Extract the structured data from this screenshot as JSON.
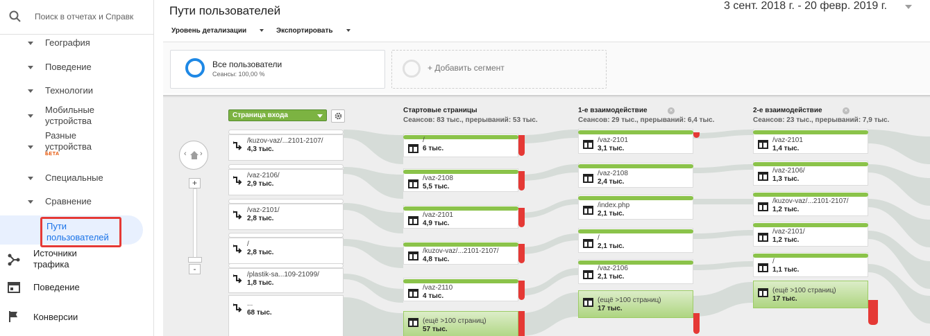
{
  "search": {
    "placeholder": "Поиск в отчетах и Справк"
  },
  "sidebar": {
    "sub_items": [
      {
        "label": "География"
      },
      {
        "label": "Поведение"
      },
      {
        "label": "Технологии"
      },
      {
        "label": "Мобильные устройства"
      },
      {
        "label": "Разные устройства",
        "badge": "БЕТА"
      },
      {
        "label": "Специальные"
      },
      {
        "label": "Сравнение"
      }
    ],
    "active_item": "Пути пользователей",
    "main_items": [
      {
        "label": "Источники трафика",
        "icon": "acquisition-icon"
      },
      {
        "label": "Поведение",
        "icon": "behavior-icon"
      },
      {
        "label": "Конверсии",
        "icon": "flag-icon"
      }
    ]
  },
  "header": {
    "title": "Пути пользователей",
    "date_range": "3 сент. 2018 г. - 20 февр. 2019 г."
  },
  "toolbar": {
    "detail_level": "Уровень детализации",
    "export": "Экспортировать"
  },
  "segments": {
    "active": {
      "name": "Все пользователи",
      "sessions": "Сеансы: 100,00 %"
    },
    "add": "+ Добавить сегмент"
  },
  "flow": {
    "dimension": "Страница входа",
    "zoom_plus": "+",
    "zoom_minus": "-",
    "entries": [
      {
        "label": "/kuzov-vaz/...2101-2107/",
        "count": "4,3 тыс."
      },
      {
        "label": "/vaz-2106/",
        "count": "2,9 тыс."
      },
      {
        "label": "/vaz-2101/",
        "count": "2,8 тыс."
      },
      {
        "label": "/",
        "count": "2,8 тыс."
      },
      {
        "label": "/plastik-sa...109-21099/",
        "count": "1,8 тыс."
      },
      {
        "label": "...",
        "count": "68 тыс."
      }
    ],
    "columns": [
      {
        "title": "Стартовые страницы",
        "stats": "Сеансов: 83 тыс., прерываний: 53 тыс.",
        "closable": false,
        "nodes": [
          {
            "label": "/",
            "count": "6 тыс."
          },
          {
            "label": "/vaz-2108",
            "count": "5,5 тыс."
          },
          {
            "label": "/vaz-2101",
            "count": "4,9 тыс."
          },
          {
            "label": "/kuzov-vaz/...2101-2107/",
            "count": "4,8 тыс."
          },
          {
            "label": "/vaz-2110",
            "count": "4 тыс."
          },
          {
            "label": "(ещё >100 страниц)",
            "count": "57 тыс."
          }
        ]
      },
      {
        "title": "1-е взаимодействие",
        "stats": "Сеансов: 29 тыс., прерываний: 6,4 тыс.",
        "closable": true,
        "nodes": [
          {
            "label": "/vaz-2101",
            "count": "3,1 тыс."
          },
          {
            "label": "/vaz-2108",
            "count": "2,4 тыс."
          },
          {
            "label": "/index.php",
            "count": "2,1 тыс."
          },
          {
            "label": "/",
            "count": "2,1 тыс."
          },
          {
            "label": "/vaz-2106",
            "count": "2,1 тыс."
          },
          {
            "label": "(ещё >100 страниц)",
            "count": "17 тыс."
          }
        ]
      },
      {
        "title": "2-е взаимодействие",
        "stats": "Сеансов: 23 тыс., прерываний: 7,9 тыс.",
        "closable": true,
        "nodes": [
          {
            "label": "/vaz-2101",
            "count": "1,4 тыс."
          },
          {
            "label": "/vaz-2106/",
            "count": "1,3 тыс."
          },
          {
            "label": "/kuzov-vaz/...2101-2107/",
            "count": "1,2 тыс."
          },
          {
            "label": "/vaz-2101/",
            "count": "1,2 тыс."
          },
          {
            "label": "/",
            "count": "1,1 тыс."
          },
          {
            "label": "(ещё >100 страниц)",
            "count": "17 тыс."
          }
        ]
      }
    ]
  },
  "colors": {
    "accent": "#1a73e8",
    "node_green": "#8bc34a",
    "drop_red": "#e53935",
    "highlight": "#e53935"
  }
}
